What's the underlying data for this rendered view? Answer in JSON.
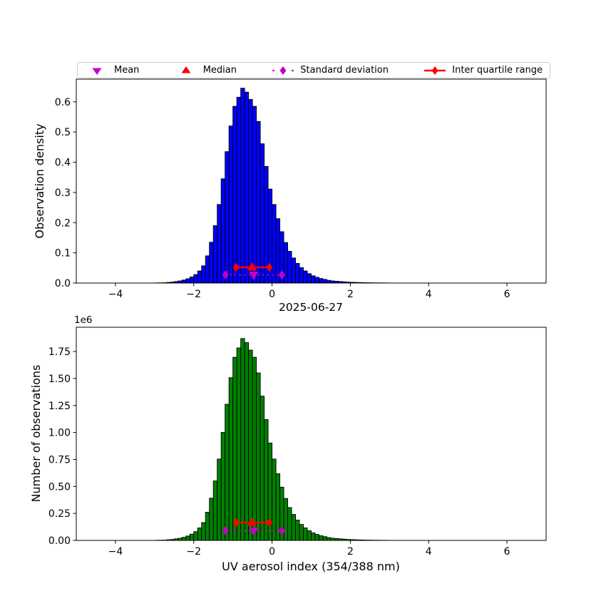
{
  "legend": {
    "items": [
      {
        "label": "Mean",
        "marker": "triangle-down",
        "color": "#c400c4",
        "linestyle": "none"
      },
      {
        "label": "Median",
        "marker": "triangle-up",
        "color": "#ff0000",
        "linestyle": "none"
      },
      {
        "label": "Standard deviation",
        "marker": "thin-diamond",
        "color": "#c400c4",
        "linestyle": "dotted"
      },
      {
        "label": "Inter quartile range",
        "marker": "thin-diamond",
        "color": "#ff0000",
        "linestyle": "solid"
      }
    ]
  },
  "stats": {
    "mean": -0.47,
    "median": -0.51,
    "std": 0.72,
    "q1": -0.92,
    "q3": -0.07
  },
  "colors": {
    "histogram_top": "#0000ff",
    "histogram_bottom": "#008000",
    "bar_edge": "#000000",
    "marker_magenta": "#c400c4",
    "marker_red": "#ff0000",
    "axis": "#000000",
    "legend_border": "#cccccc"
  },
  "chart_data": [
    {
      "type": "bar",
      "ylabel": "Observation density",
      "bar_color": "#0000ff",
      "bin_start": -3.0,
      "bin_width": 0.1,
      "values": [
        0.0004,
        0.0007,
        0.001,
        0.002,
        0.003,
        0.005,
        0.007,
        0.01,
        0.014,
        0.02,
        0.028,
        0.04,
        0.057,
        0.09,
        0.135,
        0.19,
        0.26,
        0.345,
        0.435,
        0.52,
        0.585,
        0.615,
        0.645,
        0.632,
        0.608,
        0.585,
        0.535,
        0.461,
        0.386,
        0.311,
        0.26,
        0.213,
        0.17,
        0.134,
        0.105,
        0.083,
        0.065,
        0.051,
        0.04,
        0.031,
        0.024,
        0.019,
        0.015,
        0.012,
        0.009,
        0.007,
        0.006,
        0.005,
        0.004,
        0.003,
        0.0025,
        0.002,
        0.0016,
        0.0013,
        0.001,
        0.0008,
        0.0006,
        0.0005,
        0.0004,
        0.0003
      ],
      "xlim": [
        -5,
        7
      ],
      "ylim": [
        0,
        0.675
      ],
      "xticks": [
        -4,
        -2,
        0,
        2,
        4,
        6
      ],
      "xtick_labels": [
        "−4",
        "−2",
        "0",
        "2",
        "4",
        "6"
      ],
      "yticks": [
        0,
        0.1,
        0.2,
        0.3,
        0.4,
        0.5,
        0.6
      ],
      "ytick_labels": [
        "0.0",
        "0.1",
        "0.2",
        "0.3",
        "0.4",
        "0.5",
        "0.6"
      ],
      "markers": {
        "std_y": 0.027,
        "iqr_y": 0.052
      }
    },
    {
      "type": "bar",
      "title": "2025-06-27",
      "xlabel": "UV aerosol index (354/388 nm)",
      "ylabel": "Number of observations",
      "offset_text": "1e6",
      "bar_color": "#008000",
      "bin_start": -3.0,
      "bin_width": 0.1,
      "values": [
        1160,
        2030,
        2900,
        5800,
        8700,
        14500,
        20300,
        29000,
        40600,
        58000,
        81200,
        116000,
        165300,
        261000,
        391500,
        551000,
        754000,
        1000500,
        1261500,
        1508000,
        1696500,
        1783500,
        1870500,
        1832800,
        1763200,
        1696500,
        1551500,
        1336900,
        1119400,
        901900,
        754000,
        617700,
        493000,
        388600,
        304500,
        240700,
        188500,
        147900,
        116000,
        89900,
        69600,
        55100,
        43500,
        34800,
        26100,
        20300,
        17400,
        14500,
        11600,
        8700,
        7250,
        5800,
        4640,
        3770,
        2900,
        2320,
        1740,
        1450,
        1160,
        870
      ],
      "xlim": [
        -5,
        7
      ],
      "ylim": [
        0,
        1975000
      ],
      "xticks": [
        -4,
        -2,
        0,
        2,
        4,
        6
      ],
      "xtick_labels": [
        "−4",
        "−2",
        "0",
        "2",
        "4",
        "6"
      ],
      "yticks": [
        0,
        250000,
        500000,
        750000,
        1000000,
        1250000,
        1500000,
        1750000
      ],
      "ytick_labels": [
        "0.00",
        "0.25",
        "0.50",
        "0.75",
        "1.00",
        "1.25",
        "1.50",
        "1.75"
      ],
      "markers": {
        "std_y": 90000,
        "iqr_y": 165000
      }
    }
  ]
}
